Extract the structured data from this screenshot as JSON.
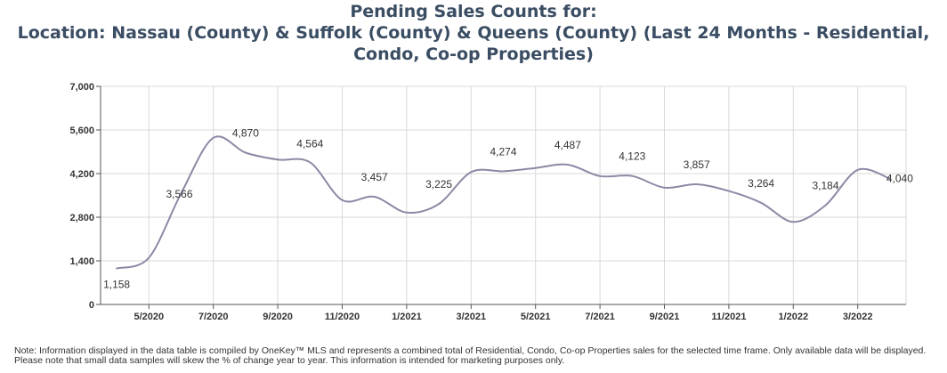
{
  "chart_data": {
    "type": "line",
    "title_lines": [
      "Pending Sales Counts for:",
      "Location: Nassau (County) & Suffolk (County) & Queens (County) (Last 24 Months - Residential,",
      "Condo, Co-op Properties)"
    ],
    "xlabel": "",
    "ylabel": "",
    "ylim": [
      0,
      7000
    ],
    "y_ticks": [
      "7,000",
      "5,600",
      "4,200",
      "2,800",
      "1,400",
      "0"
    ],
    "y_tick_values": [
      7000,
      5600,
      4200,
      2800,
      1400,
      0
    ],
    "x_ticks": [
      "5/2020",
      "7/2020",
      "9/2020",
      "11/2020",
      "1/2021",
      "3/2021",
      "5/2021",
      "7/2021",
      "9/2021",
      "11/2021",
      "1/2022",
      "3/2022"
    ],
    "grid": true,
    "legend": "none",
    "line_color": "#8a8aa6",
    "series": [
      {
        "x": [
          "4/2020",
          "5/2020",
          "6/2020",
          "7/2020",
          "8/2020",
          "9/2020",
          "10/2020",
          "11/2020",
          "12/2020",
          "1/2021",
          "2/2021",
          "3/2021",
          "4/2021",
          "5/2021",
          "6/2021",
          "7/2021",
          "8/2021",
          "9/2021",
          "10/2021",
          "11/2021",
          "12/2021",
          "1/2022",
          "2/2022",
          "3/2022",
          "4/2022"
        ],
        "values": [
          1158,
          1500,
          3566,
          5350,
          4870,
          4650,
          4564,
          3350,
          3457,
          2950,
          3225,
          4250,
          4274,
          4380,
          4487,
          4120,
          4123,
          3750,
          3857,
          3640,
          3264,
          2650,
          3184,
          4320,
          4040
        ],
        "labels": [
          "1,158",
          "",
          "3,566",
          "",
          "4,870",
          "",
          "4,564",
          "",
          "3,457",
          "",
          "3,225",
          "",
          "4,274",
          "",
          "4,487",
          "",
          "4,123",
          "",
          "3,857",
          "",
          "3,264",
          "",
          "3,184",
          "",
          "4,040"
        ]
      }
    ]
  },
  "footnote": "Note: Information displayed in the data table is compiled by OneKey™ MLS and represents a combined total of Residential, Condo, Co-op Properties sales for the selected time frame. Only available data will be displayed. Please note that small data samples will skew the % of change year to year. This information is intended for marketing purposes only."
}
